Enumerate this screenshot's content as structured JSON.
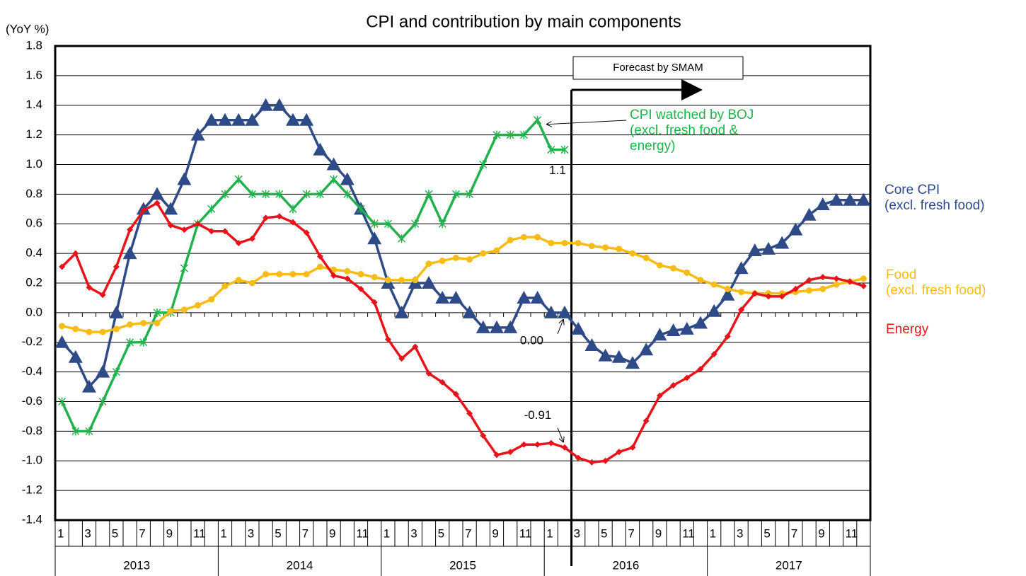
{
  "chart_data": {
    "type": "line",
    "title": "CPI and contribution by main components",
    "y_axis_label": "(YoY %)",
    "forecast_label": "Forecast by SMAM",
    "ylim": [
      -1.4,
      1.8
    ],
    "yticks": [
      {
        "value": -1.4,
        "label": "-1.4"
      },
      {
        "value": -1.2,
        "label": "-1.2"
      },
      {
        "value": -1.0,
        "label": "-1.0"
      },
      {
        "value": -0.8,
        "label": "-0.8"
      },
      {
        "value": -0.6,
        "label": "-0.6"
      },
      {
        "value": -0.4,
        "label": "-0.4"
      },
      {
        "value": -0.2,
        "label": "-0.2"
      },
      {
        "value": 0,
        "label": "0.0"
      },
      {
        "value": 0.2,
        "label": "0.2"
      },
      {
        "value": 0.4,
        "label": "0.4"
      },
      {
        "value": 0.6,
        "label": "0.6"
      },
      {
        "value": 0.8,
        "label": "0.8"
      },
      {
        "value": 1.0,
        "label": "1.0"
      },
      {
        "value": 1.2,
        "label": "1.2"
      },
      {
        "value": 1.4,
        "label": "1.4"
      },
      {
        "value": 1.6,
        "label": "1.6"
      },
      {
        "value": 1.8,
        "label": "1.8"
      }
    ],
    "grid": true,
    "categories": [
      "1",
      null,
      "3",
      null,
      "5",
      null,
      "7",
      null,
      "9",
      null,
      "11",
      null,
      "1",
      null,
      "3",
      null,
      "5",
      null,
      "7",
      null,
      "9",
      null,
      "11",
      null,
      "1",
      null,
      "3",
      null,
      "5",
      null,
      "7",
      null,
      "9",
      null,
      "11",
      null,
      "1",
      null,
      "3",
      null,
      "5",
      null,
      "7",
      null,
      "9",
      null,
      "11",
      null,
      "1",
      null,
      "3",
      null,
      "5",
      null,
      "7",
      null,
      "9",
      null,
      "11",
      null
    ],
    "years": [
      "2013",
      "2014",
      "2015",
      "2016",
      "2017"
    ],
    "series": [
      {
        "name": "Core CPI\n(excl. fresh food)",
        "color": "#2e4a87",
        "marker": "triangle",
        "values": [
          -0.2,
          -0.3,
          -0.5,
          -0.4,
          0.0,
          0.4,
          0.7,
          0.8,
          0.7,
          0.9,
          1.2,
          1.3,
          1.3,
          1.3,
          1.3,
          1.4,
          1.4,
          1.3,
          1.3,
          1.1,
          1.0,
          0.9,
          0.7,
          0.5,
          0.2,
          0.0,
          0.2,
          0.2,
          0.1,
          0.1,
          0.0,
          -0.1,
          -0.1,
          -0.1,
          0.1,
          0.1,
          0.0,
          0.0,
          -0.11,
          -0.22,
          -0.29,
          -0.3,
          -0.34,
          -0.25,
          -0.15,
          -0.12,
          -0.11,
          -0.07,
          0.01,
          0.12,
          0.3,
          0.42,
          0.43,
          0.47,
          0.56,
          0.66,
          0.73,
          0.76,
          0.76,
          0.76
        ],
        "value_labels": [
          null,
          null,
          null,
          null,
          null,
          null,
          null,
          null,
          null,
          null,
          null,
          null,
          null,
          null,
          null,
          null,
          null,
          null,
          null,
          null,
          null,
          null,
          null,
          null,
          null,
          null,
          null,
          null,
          null,
          null,
          null,
          null,
          null,
          null,
          null,
          null,
          null,
          "0.00",
          null,
          null,
          null,
          null,
          null,
          null,
          null,
          null,
          null,
          null,
          null,
          null,
          null,
          null,
          null,
          null,
          null,
          null,
          null,
          null,
          null,
          null
        ]
      },
      {
        "name": "CPI watched by BOJ\n(excl. fresh food &\nenergy)",
        "color": "#22b14c",
        "marker": "star",
        "values": [
          -0.6,
          -0.8,
          -0.8,
          -0.6,
          -0.4,
          -0.2,
          -0.2,
          0.0,
          0.0,
          0.3,
          0.6,
          0.7,
          0.8,
          0.9,
          0.8,
          0.8,
          0.8,
          0.7,
          0.8,
          0.8,
          0.9,
          0.8,
          0.7,
          0.6,
          0.6,
          0.5,
          0.6,
          0.8,
          0.6,
          0.8,
          0.8,
          1.0,
          1.2,
          1.2,
          1.2,
          1.3,
          1.1,
          1.1,
          null,
          null,
          null,
          null,
          null,
          null,
          null,
          null,
          null,
          null,
          null,
          null,
          null,
          null,
          null,
          null,
          null,
          null,
          null,
          null,
          null,
          null
        ],
        "value_labels": [
          null,
          null,
          null,
          null,
          null,
          null,
          null,
          null,
          null,
          null,
          null,
          null,
          null,
          null,
          null,
          null,
          null,
          null,
          null,
          null,
          null,
          null,
          null,
          null,
          null,
          null,
          null,
          null,
          null,
          null,
          null,
          null,
          null,
          null,
          null,
          null,
          null,
          "1.1",
          null,
          null,
          null,
          null,
          null,
          null,
          null,
          null,
          null,
          null,
          null,
          null,
          null,
          null,
          null,
          null,
          null,
          null,
          null,
          null,
          null,
          null
        ]
      },
      {
        "name": "Food\n(excl. fresh food)",
        "color": "#f8bc16",
        "marker": "circle",
        "values": [
          -0.09,
          -0.11,
          -0.13,
          -0.13,
          -0.11,
          -0.08,
          -0.07,
          -0.07,
          0.01,
          0.02,
          0.05,
          0.09,
          0.18,
          0.22,
          0.2,
          0.26,
          0.26,
          0.26,
          0.26,
          0.31,
          0.29,
          0.28,
          0.26,
          0.24,
          0.22,
          0.22,
          0.22,
          0.33,
          0.35,
          0.37,
          0.36,
          0.4,
          0.42,
          0.49,
          0.51,
          0.51,
          0.47,
          0.47,
          0.47,
          0.45,
          0.44,
          0.43,
          0.4,
          0.37,
          0.32,
          0.3,
          0.27,
          0.22,
          0.19,
          0.16,
          0.14,
          0.13,
          0.13,
          0.13,
          0.14,
          0.15,
          0.16,
          0.19,
          0.21,
          0.23
        ]
      },
      {
        "name": "Energy",
        "color": "#e8141b",
        "marker": "diamond",
        "values": [
          0.31,
          0.4,
          0.17,
          0.12,
          0.31,
          0.56,
          0.69,
          0.74,
          0.59,
          0.56,
          0.6,
          0.55,
          0.55,
          0.47,
          0.5,
          0.64,
          0.65,
          0.61,
          0.54,
          0.38,
          0.25,
          0.23,
          0.16,
          0.07,
          -0.18,
          -0.31,
          -0.23,
          -0.41,
          -0.47,
          -0.55,
          -0.68,
          -0.83,
          -0.96,
          -0.94,
          -0.89,
          -0.89,
          -0.88,
          -0.91,
          -0.98,
          -1.01,
          -1.0,
          -0.94,
          -0.91,
          -0.73,
          -0.56,
          -0.49,
          -0.44,
          -0.38,
          -0.28,
          -0.16,
          0.02,
          0.13,
          0.11,
          0.11,
          0.16,
          0.22,
          0.24,
          0.23,
          0.21,
          0.18
        ],
        "value_labels": [
          null,
          null,
          null,
          null,
          null,
          null,
          null,
          null,
          null,
          null,
          null,
          null,
          null,
          null,
          null,
          null,
          null,
          null,
          null,
          null,
          null,
          null,
          null,
          null,
          null,
          null,
          null,
          null,
          null,
          null,
          null,
          null,
          null,
          null,
          null,
          null,
          null,
          "-0.91",
          null,
          null,
          null,
          null,
          null,
          null,
          null,
          null,
          null,
          null,
          null,
          null,
          null,
          null,
          null,
          null,
          null,
          null,
          null,
          null,
          null,
          null
        ]
      }
    ]
  }
}
